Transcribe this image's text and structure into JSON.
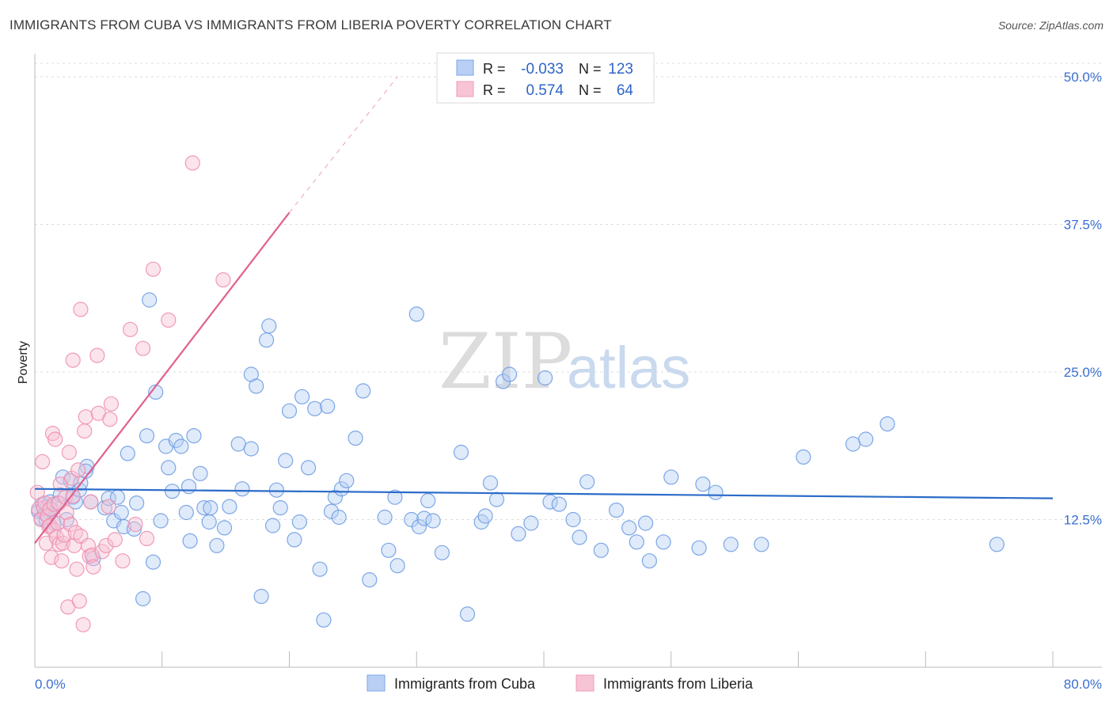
{
  "header": {
    "title": "IMMIGRANTS FROM CUBA VS IMMIGRANTS FROM LIBERIA POVERTY CORRELATION CHART",
    "source": "Source: ZipAtlas.com"
  },
  "watermark": {
    "zip": "ZIP",
    "atlas": "atlas"
  },
  "chart_data": {
    "type": "scatter",
    "title": "IMMIGRANTS FROM CUBA VS IMMIGRANTS FROM LIBERIA POVERTY CORRELATION CHART",
    "ylabel": "Poverty",
    "xlim": [
      0,
      80
    ],
    "ylim": [
      0,
      50
    ],
    "x_tick_labels": [
      "0.0%",
      "80.0%"
    ],
    "y_tick_labels": [
      {
        "value": 12.5,
        "label": "12.5%"
      },
      {
        "value": 25,
        "label": "25.0%"
      },
      {
        "value": 37.5,
        "label": "37.5%"
      },
      {
        "value": 50,
        "label": "50.0%"
      }
    ],
    "grid": true,
    "legend_placement": "top-center",
    "legend": [
      {
        "r_label": "R =",
        "r_value": "-0.033",
        "n_label": "N =",
        "n_value": "123",
        "color": "#7aa6e8",
        "fill": "#b9d0f4"
      },
      {
        "r_label": "R =",
        "r_value": "0.574",
        "n_label": "N =",
        "n_value": "64",
        "color": "#f09ab8",
        "fill": "#f7c4d5"
      }
    ],
    "series": [
      {
        "name": "Immigrants from Cuba",
        "color": "#6f9de3",
        "trend": {
          "x0": 0,
          "y0": 15.1,
          "x1": 80,
          "y1": 14.3,
          "color": "#2b6cc9"
        },
        "points": [
          [
            0.3,
            13.2
          ],
          [
            0.5,
            12.6
          ],
          [
            0.6,
            13.8
          ],
          [
            0.8,
            13.0
          ],
          [
            0.9,
            12.4
          ],
          [
            1.0,
            13.6
          ],
          [
            1.2,
            14.0
          ],
          [
            1.3,
            13.4
          ],
          [
            1.5,
            12.2
          ],
          [
            1.8,
            13.9
          ],
          [
            2.0,
            14.6
          ],
          [
            2.2,
            16.1
          ],
          [
            2.5,
            12.5
          ],
          [
            2.8,
            15.8
          ],
          [
            3.0,
            14.4
          ],
          [
            3.2,
            14.0
          ],
          [
            3.5,
            15.0
          ],
          [
            3.6,
            15.6
          ],
          [
            4.1,
            17.0
          ],
          [
            4.0,
            16.6
          ],
          [
            4.4,
            14.0
          ],
          [
            4.6,
            9.2
          ],
          [
            5.5,
            13.5
          ],
          [
            5.8,
            14.3
          ],
          [
            6.2,
            12.4
          ],
          [
            6.5,
            14.4
          ],
          [
            6.8,
            13.1
          ],
          [
            7.0,
            11.9
          ],
          [
            7.3,
            18.1
          ],
          [
            7.8,
            11.7
          ],
          [
            8.0,
            13.9
          ],
          [
            8.5,
            5.8
          ],
          [
            8.8,
            19.6
          ],
          [
            9.0,
            31.1
          ],
          [
            9.3,
            8.9
          ],
          [
            9.5,
            23.3
          ],
          [
            9.9,
            12.4
          ],
          [
            10.3,
            18.7
          ],
          [
            10.5,
            16.9
          ],
          [
            10.8,
            14.9
          ],
          [
            11.1,
            19.2
          ],
          [
            11.5,
            18.7
          ],
          [
            11.9,
            13.1
          ],
          [
            12.1,
            15.3
          ],
          [
            12.2,
            10.7
          ],
          [
            12.5,
            19.6
          ],
          [
            13.0,
            16.4
          ],
          [
            13.3,
            13.5
          ],
          [
            13.7,
            12.3
          ],
          [
            13.8,
            13.5
          ],
          [
            14.3,
            10.3
          ],
          [
            14.9,
            11.8
          ],
          [
            15.3,
            13.6
          ],
          [
            16.0,
            18.9
          ],
          [
            16.3,
            15.1
          ],
          [
            17.0,
            24.8
          ],
          [
            17.0,
            18.5
          ],
          [
            17.4,
            23.8
          ],
          [
            17.8,
            6.0
          ],
          [
            18.2,
            27.7
          ],
          [
            18.4,
            28.9
          ],
          [
            18.7,
            12.0
          ],
          [
            19.0,
            15.0
          ],
          [
            19.3,
            13.5
          ],
          [
            19.7,
            17.5
          ],
          [
            20.0,
            21.7
          ],
          [
            20.4,
            10.8
          ],
          [
            20.8,
            12.3
          ],
          [
            21.0,
            22.9
          ],
          [
            21.5,
            16.9
          ],
          [
            22.0,
            21.9
          ],
          [
            22.4,
            8.3
          ],
          [
            22.7,
            4.0
          ],
          [
            23.0,
            22.1
          ],
          [
            23.3,
            13.2
          ],
          [
            23.6,
            14.4
          ],
          [
            23.9,
            12.7
          ],
          [
            24.1,
            15.1
          ],
          [
            24.5,
            15.8
          ],
          [
            25.2,
            19.4
          ],
          [
            25.8,
            23.4
          ],
          [
            26.3,
            7.4
          ],
          [
            27.5,
            12.7
          ],
          [
            27.8,
            9.9
          ],
          [
            28.3,
            14.4
          ],
          [
            28.5,
            8.6
          ],
          [
            29.6,
            12.5
          ],
          [
            30.0,
            29.9
          ],
          [
            30.2,
            11.9
          ],
          [
            30.6,
            12.6
          ],
          [
            30.9,
            14.1
          ],
          [
            31.3,
            12.4
          ],
          [
            32.0,
            9.7
          ],
          [
            33.5,
            18.2
          ],
          [
            34.0,
            4.5
          ],
          [
            35.1,
            12.3
          ],
          [
            35.4,
            12.8
          ],
          [
            35.8,
            15.6
          ],
          [
            36.3,
            14.2
          ],
          [
            36.8,
            24.2
          ],
          [
            37.3,
            24.8
          ],
          [
            38.0,
            11.3
          ],
          [
            39.0,
            12.2
          ],
          [
            40.1,
            24.5
          ],
          [
            40.5,
            14.0
          ],
          [
            41.2,
            13.8
          ],
          [
            42.3,
            12.5
          ],
          [
            42.8,
            11.0
          ],
          [
            43.4,
            15.7
          ],
          [
            44.5,
            9.9
          ],
          [
            45.7,
            13.3
          ],
          [
            46.7,
            11.8
          ],
          [
            47.3,
            10.6
          ],
          [
            48.0,
            12.2
          ],
          [
            48.3,
            9.0
          ],
          [
            49.4,
            10.6
          ],
          [
            50.0,
            16.1
          ],
          [
            52.2,
            10.1
          ],
          [
            52.5,
            15.5
          ],
          [
            53.5,
            14.8
          ],
          [
            54.7,
            10.4
          ],
          [
            57.1,
            10.4
          ],
          [
            60.4,
            17.8
          ],
          [
            64.3,
            18.9
          ],
          [
            65.3,
            19.3
          ],
          [
            67.0,
            20.6
          ],
          [
            75.6,
            10.4
          ]
        ]
      },
      {
        "name": "Immigrants from Liberia",
        "color": "#f08fb0",
        "trend": {
          "x0": 0,
          "y0": 10.5,
          "x1": 20,
          "y1": 38.5,
          "dash_x1": 28.5,
          "dash_y1": 50.0,
          "color": "#e0608e"
        },
        "points": [
          [
            0.2,
            14.8
          ],
          [
            0.3,
            13.4
          ],
          [
            0.5,
            12.5
          ],
          [
            0.6,
            17.4
          ],
          [
            0.7,
            13.5
          ],
          [
            0.8,
            13.9
          ],
          [
            0.9,
            10.5
          ],
          [
            1.0,
            12.8
          ],
          [
            1.1,
            11.9
          ],
          [
            1.2,
            12.0
          ],
          [
            1.2,
            13.4
          ],
          [
            1.3,
            9.3
          ],
          [
            1.4,
            19.8
          ],
          [
            1.5,
            11.6
          ],
          [
            1.5,
            13.8
          ],
          [
            1.6,
            19.3
          ],
          [
            1.7,
            11.0
          ],
          [
            1.8,
            12.2
          ],
          [
            1.9,
            10.4
          ],
          [
            1.9,
            13.9
          ],
          [
            2.0,
            15.5
          ],
          [
            2.1,
            9.0
          ],
          [
            2.2,
            10.5
          ],
          [
            2.3,
            11.2
          ],
          [
            2.4,
            14.4
          ],
          [
            2.5,
            13.1
          ],
          [
            2.6,
            5.1
          ],
          [
            2.7,
            18.2
          ],
          [
            2.8,
            12.1
          ],
          [
            2.9,
            16.0
          ],
          [
            3.0,
            14.5
          ],
          [
            3.0,
            26.0
          ],
          [
            3.1,
            10.3
          ],
          [
            3.2,
            11.4
          ],
          [
            3.3,
            8.3
          ],
          [
            3.4,
            16.7
          ],
          [
            3.5,
            5.6
          ],
          [
            3.6,
            30.3
          ],
          [
            3.6,
            11.1
          ],
          [
            3.8,
            3.6
          ],
          [
            3.9,
            20.0
          ],
          [
            4.0,
            21.2
          ],
          [
            4.2,
            10.3
          ],
          [
            4.3,
            9.4
          ],
          [
            4.4,
            14.0
          ],
          [
            4.5,
            9.5
          ],
          [
            4.6,
            8.5
          ],
          [
            4.9,
            26.4
          ],
          [
            5.0,
            21.5
          ],
          [
            5.3,
            9.8
          ],
          [
            5.6,
            10.3
          ],
          [
            5.8,
            13.6
          ],
          [
            5.9,
            21.0
          ],
          [
            6.0,
            22.3
          ],
          [
            6.3,
            10.8
          ],
          [
            6.9,
            9.0
          ],
          [
            7.5,
            28.6
          ],
          [
            7.9,
            12.1
          ],
          [
            8.5,
            27.0
          ],
          [
            8.8,
            10.9
          ],
          [
            9.3,
            33.7
          ],
          [
            10.5,
            29.4
          ],
          [
            12.4,
            42.7
          ],
          [
            14.8,
            32.8
          ]
        ]
      }
    ]
  }
}
